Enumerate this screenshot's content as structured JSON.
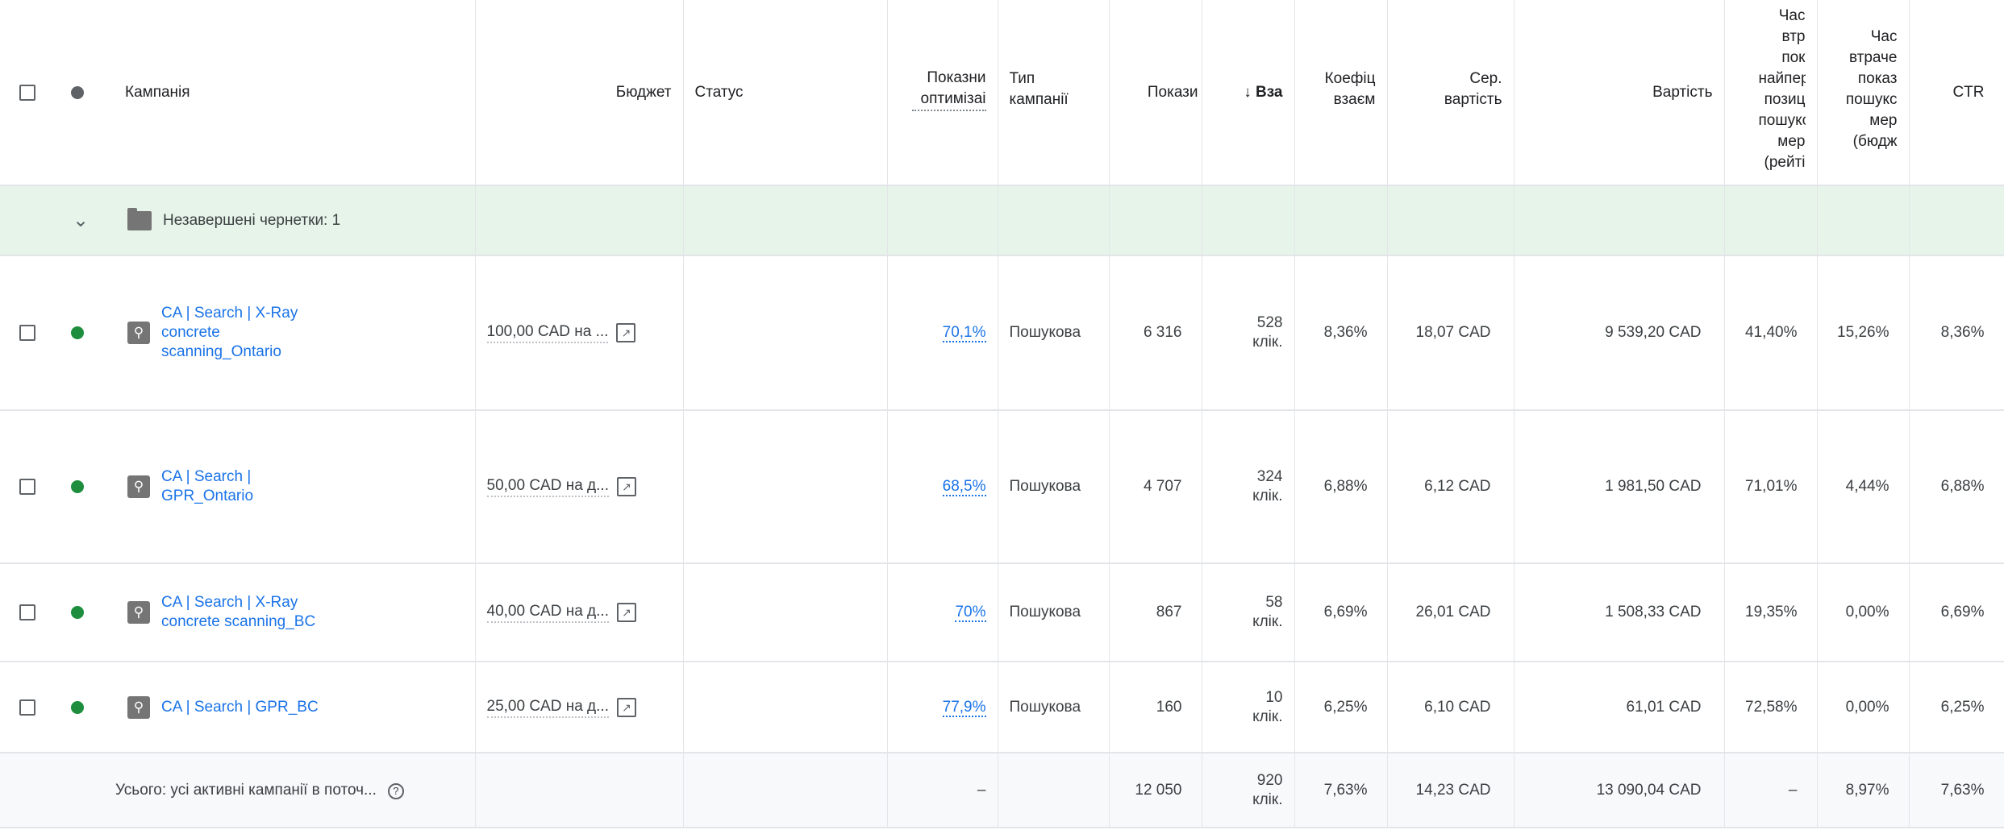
{
  "colors": {
    "accent": "#1a73e8",
    "status_enabled": "#1e8e3e",
    "status_header": "#5f6368",
    "draft_row_bg": "#e6f4ea"
  },
  "headers": {
    "campaign": "Кампанія",
    "budget": "Бюджет",
    "status": "Статус",
    "optimization": "Показни оптимізаі",
    "type": "Тип кампанії",
    "impressions": "Покази",
    "interactions": "↓ Вза",
    "interaction_rate": "Коефіц взаєм",
    "avg_cost": "Сер. вартість",
    "cost": "Вартість",
    "top_is_lost_rank": "Час втр пок найпер позиц пошукс мер (рейті",
    "is_lost_budget": "Час втраче показ пошукс мер (бюдж",
    "ctr": "CTR"
  },
  "draft_row": {
    "icon": "folder-icon",
    "label": "Незавершені чернетки: 1"
  },
  "rows": [
    {
      "name": "CA | Search | X-Ray concrete scanning_Ontario",
      "budget": "100,00 CAD на ...",
      "optimization": "70,1%",
      "type": "Пошукова",
      "impressions": "6 316",
      "interactions": "528",
      "interactions_unit": "клік.",
      "interaction_rate": "8,36%",
      "avg_cost": "18,07 CAD",
      "cost": "9 539,20 CAD",
      "top_is_lost_rank": "41,40%",
      "is_lost_budget": "15,26%",
      "ctr": "8,36%"
    },
    {
      "name": "CA | Search | GPR_Ontario",
      "budget": "50,00 CAD на д...",
      "optimization": "68,5%",
      "type": "Пошукова",
      "impressions": "4 707",
      "interactions": "324",
      "interactions_unit": "клік.",
      "interaction_rate": "6,88%",
      "avg_cost": "6,12 CAD",
      "cost": "1 981,50 CAD",
      "top_is_lost_rank": "71,01%",
      "is_lost_budget": "4,44%",
      "ctr": "6,88%"
    },
    {
      "name": "CA | Search | X-Ray concrete scanning_BC",
      "budget": "40,00 CAD на д...",
      "optimization": "70%",
      "type": "Пошукова",
      "impressions": "867",
      "interactions": "58",
      "interactions_unit": "клік.",
      "interaction_rate": "6,69%",
      "avg_cost": "26,01 CAD",
      "cost": "1 508,33 CAD",
      "top_is_lost_rank": "19,35%",
      "is_lost_budget": "0,00%",
      "ctr": "6,69%"
    },
    {
      "name": "CA | Search | GPR_BC",
      "budget": "25,00 CAD на д...",
      "optimization": "77,9%",
      "type": "Пошукова",
      "impressions": "160",
      "interactions": "10",
      "interactions_unit": "клік.",
      "interaction_rate": "6,25%",
      "avg_cost": "6,10 CAD",
      "cost": "61,01 CAD",
      "top_is_lost_rank": "72,58%",
      "is_lost_budget": "0,00%",
      "ctr": "6,25%"
    }
  ],
  "total": {
    "label": "Усього: усі активні кампанії в поточ...",
    "optimization": "–",
    "impressions": "12 050",
    "interactions": "920",
    "interactions_unit": "клік.",
    "interaction_rate": "7,63%",
    "avg_cost": "14,23 CAD",
    "cost": "13 090,04 CAD",
    "top_is_lost_rank": "–",
    "is_lost_budget": "8,97%",
    "ctr": "7,63%"
  }
}
